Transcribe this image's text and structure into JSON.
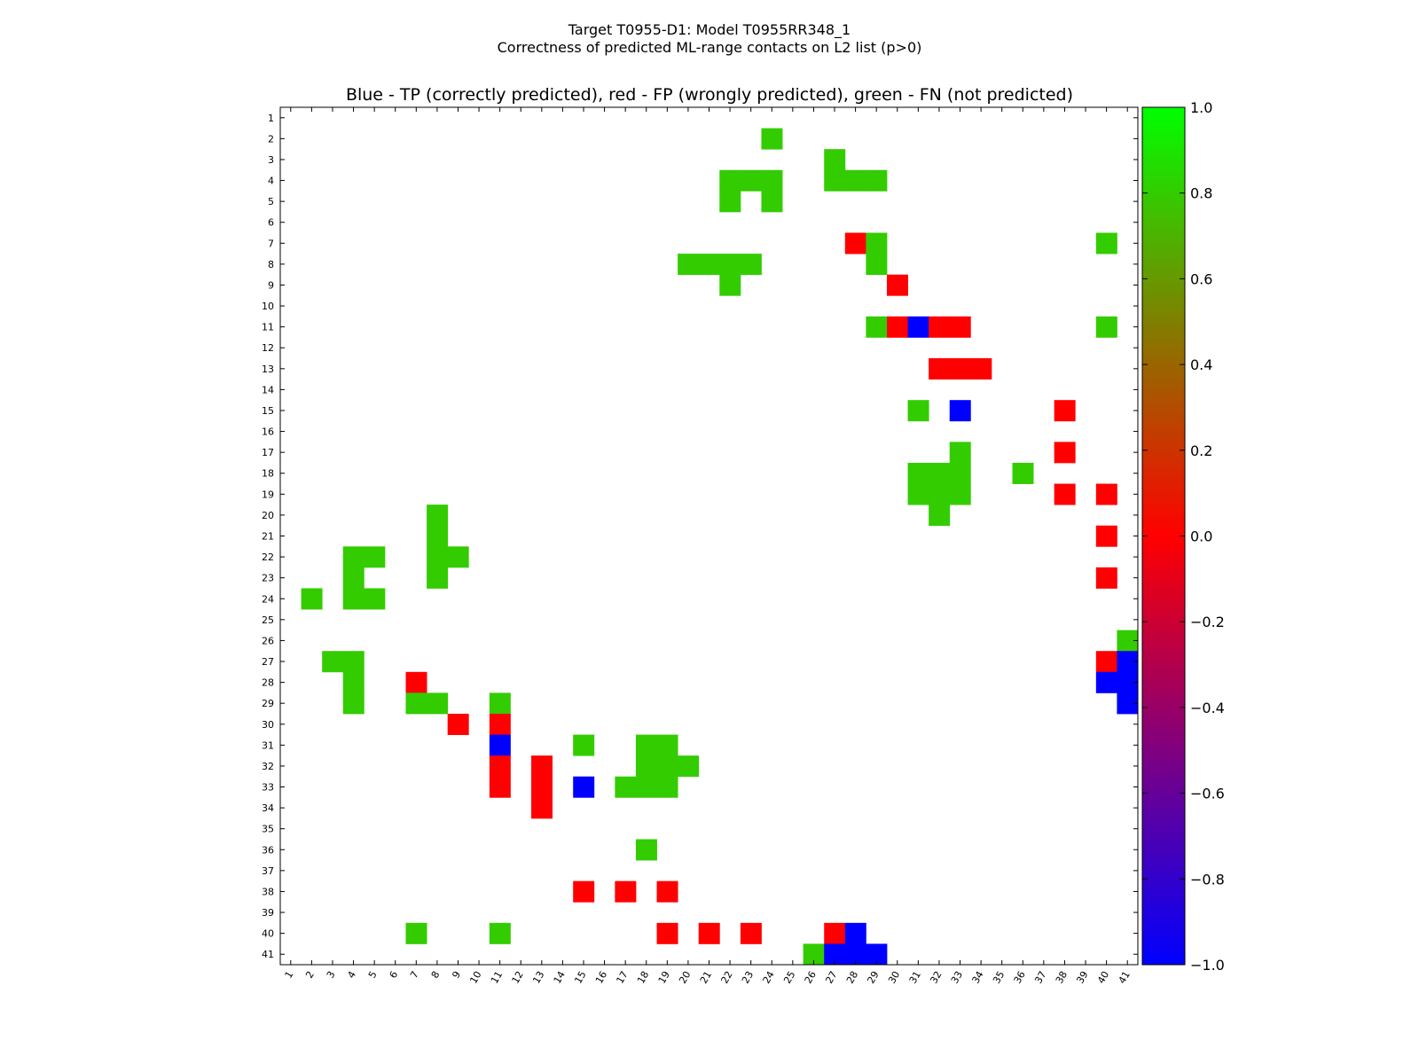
{
  "chart_data": {
    "type": "heatmap",
    "suptitle_line1": "Target T0955-D1: Model T0955RR348_1",
    "suptitle_line2": "Correctness of predicted ML-range contacts on L2 list (p>0)",
    "title": "Blue - TP (correctly predicted), red - FP (wrongly predicted), green - FN (not predicted)",
    "n": 41,
    "x_ticks": [
      "1",
      "2",
      "3",
      "4",
      "5",
      "6",
      "7",
      "8",
      "9",
      "10",
      "11",
      "12",
      "13",
      "14",
      "15",
      "16",
      "17",
      "18",
      "19",
      "20",
      "21",
      "22",
      "23",
      "24",
      "25",
      "26",
      "27",
      "28",
      "29",
      "30",
      "31",
      "32",
      "33",
      "34",
      "35",
      "36",
      "37",
      "38",
      "39",
      "40",
      "41"
    ],
    "y_ticks": [
      "1",
      "2",
      "3",
      "4",
      "5",
      "6",
      "7",
      "8",
      "9",
      "10",
      "11",
      "12",
      "13",
      "14",
      "15",
      "16",
      "17",
      "18",
      "19",
      "20",
      "21",
      "22",
      "23",
      "24",
      "25",
      "26",
      "27",
      "28",
      "29",
      "30",
      "31",
      "32",
      "33",
      "34",
      "35",
      "36",
      "37",
      "38",
      "39",
      "40",
      "41"
    ],
    "colorbar": {
      "vmin": -1.0,
      "vmax": 1.0,
      "ticks": [
        "−1.0",
        "−0.8",
        "−0.6",
        "−0.4",
        "−0.2",
        "0.0",
        "0.2",
        "0.4",
        "0.6",
        "0.8",
        "1.0"
      ]
    },
    "colors": {
      "TP": "#0000ff",
      "FP": "#ff0000",
      "FN": "#33cc00"
    },
    "categories": [
      "TP",
      "FP",
      "FN"
    ],
    "cells": [
      {
        "row": 2,
        "col": 24,
        "type": "FN"
      },
      {
        "row": 3,
        "col": 27,
        "type": "FN"
      },
      {
        "row": 4,
        "col": 22,
        "type": "FN"
      },
      {
        "row": 4,
        "col": 23,
        "type": "FN"
      },
      {
        "row": 4,
        "col": 24,
        "type": "FN"
      },
      {
        "row": 4,
        "col": 27,
        "type": "FN"
      },
      {
        "row": 4,
        "col": 28,
        "type": "FN"
      },
      {
        "row": 4,
        "col": 29,
        "type": "FN"
      },
      {
        "row": 5,
        "col": 22,
        "type": "FN"
      },
      {
        "row": 5,
        "col": 24,
        "type": "FN"
      },
      {
        "row": 7,
        "col": 28,
        "type": "FP"
      },
      {
        "row": 7,
        "col": 29,
        "type": "FN"
      },
      {
        "row": 7,
        "col": 40,
        "type": "FN"
      },
      {
        "row": 8,
        "col": 20,
        "type": "FN"
      },
      {
        "row": 8,
        "col": 21,
        "type": "FN"
      },
      {
        "row": 8,
        "col": 22,
        "type": "FN"
      },
      {
        "row": 8,
        "col": 23,
        "type": "FN"
      },
      {
        "row": 8,
        "col": 29,
        "type": "FN"
      },
      {
        "row": 9,
        "col": 22,
        "type": "FN"
      },
      {
        "row": 9,
        "col": 30,
        "type": "FP"
      },
      {
        "row": 11,
        "col": 29,
        "type": "FN"
      },
      {
        "row": 11,
        "col": 30,
        "type": "FP"
      },
      {
        "row": 11,
        "col": 31,
        "type": "TP"
      },
      {
        "row": 11,
        "col": 32,
        "type": "FP"
      },
      {
        "row": 11,
        "col": 33,
        "type": "FP"
      },
      {
        "row": 11,
        "col": 40,
        "type": "FN"
      },
      {
        "row": 13,
        "col": 32,
        "type": "FP"
      },
      {
        "row": 13,
        "col": 33,
        "type": "FP"
      },
      {
        "row": 13,
        "col": 34,
        "type": "FP"
      },
      {
        "row": 15,
        "col": 31,
        "type": "FN"
      },
      {
        "row": 15,
        "col": 33,
        "type": "TP"
      },
      {
        "row": 15,
        "col": 38,
        "type": "FP"
      },
      {
        "row": 17,
        "col": 33,
        "type": "FN"
      },
      {
        "row": 17,
        "col": 38,
        "type": "FP"
      },
      {
        "row": 18,
        "col": 31,
        "type": "FN"
      },
      {
        "row": 18,
        "col": 32,
        "type": "FN"
      },
      {
        "row": 18,
        "col": 33,
        "type": "FN"
      },
      {
        "row": 18,
        "col": 36,
        "type": "FN"
      },
      {
        "row": 19,
        "col": 31,
        "type": "FN"
      },
      {
        "row": 19,
        "col": 32,
        "type": "FN"
      },
      {
        "row": 19,
        "col": 33,
        "type": "FN"
      },
      {
        "row": 19,
        "col": 38,
        "type": "FP"
      },
      {
        "row": 19,
        "col": 40,
        "type": "FP"
      },
      {
        "row": 20,
        "col": 8,
        "type": "FN"
      },
      {
        "row": 20,
        "col": 32,
        "type": "FN"
      },
      {
        "row": 21,
        "col": 8,
        "type": "FN"
      },
      {
        "row": 21,
        "col": 40,
        "type": "FP"
      },
      {
        "row": 22,
        "col": 4,
        "type": "FN"
      },
      {
        "row": 22,
        "col": 5,
        "type": "FN"
      },
      {
        "row": 22,
        "col": 8,
        "type": "FN"
      },
      {
        "row": 22,
        "col": 9,
        "type": "FN"
      },
      {
        "row": 23,
        "col": 4,
        "type": "FN"
      },
      {
        "row": 23,
        "col": 8,
        "type": "FN"
      },
      {
        "row": 23,
        "col": 40,
        "type": "FP"
      },
      {
        "row": 24,
        "col": 2,
        "type": "FN"
      },
      {
        "row": 24,
        "col": 4,
        "type": "FN"
      },
      {
        "row": 24,
        "col": 5,
        "type": "FN"
      },
      {
        "row": 26,
        "col": 41,
        "type": "FN"
      },
      {
        "row": 27,
        "col": 3,
        "type": "FN"
      },
      {
        "row": 27,
        "col": 4,
        "type": "FN"
      },
      {
        "row": 27,
        "col": 40,
        "type": "FP"
      },
      {
        "row": 27,
        "col": 41,
        "type": "TP"
      },
      {
        "row": 28,
        "col": 4,
        "type": "FN"
      },
      {
        "row": 28,
        "col": 7,
        "type": "FP"
      },
      {
        "row": 28,
        "col": 40,
        "type": "TP"
      },
      {
        "row": 28,
        "col": 41,
        "type": "TP"
      },
      {
        "row": 29,
        "col": 4,
        "type": "FN"
      },
      {
        "row": 29,
        "col": 7,
        "type": "FN"
      },
      {
        "row": 29,
        "col": 8,
        "type": "FN"
      },
      {
        "row": 29,
        "col": 11,
        "type": "FN"
      },
      {
        "row": 29,
        "col": 41,
        "type": "TP"
      },
      {
        "row": 30,
        "col": 9,
        "type": "FP"
      },
      {
        "row": 30,
        "col": 11,
        "type": "FP"
      },
      {
        "row": 31,
        "col": 11,
        "type": "TP"
      },
      {
        "row": 31,
        "col": 15,
        "type": "FN"
      },
      {
        "row": 31,
        "col": 18,
        "type": "FN"
      },
      {
        "row": 31,
        "col": 19,
        "type": "FN"
      },
      {
        "row": 32,
        "col": 11,
        "type": "FP"
      },
      {
        "row": 32,
        "col": 13,
        "type": "FP"
      },
      {
        "row": 32,
        "col": 18,
        "type": "FN"
      },
      {
        "row": 32,
        "col": 19,
        "type": "FN"
      },
      {
        "row": 32,
        "col": 20,
        "type": "FN"
      },
      {
        "row": 33,
        "col": 11,
        "type": "FP"
      },
      {
        "row": 33,
        "col": 13,
        "type": "FP"
      },
      {
        "row": 33,
        "col": 15,
        "type": "TP"
      },
      {
        "row": 33,
        "col": 17,
        "type": "FN"
      },
      {
        "row": 33,
        "col": 18,
        "type": "FN"
      },
      {
        "row": 33,
        "col": 19,
        "type": "FN"
      },
      {
        "row": 34,
        "col": 13,
        "type": "FP"
      },
      {
        "row": 36,
        "col": 18,
        "type": "FN"
      },
      {
        "row": 38,
        "col": 15,
        "type": "FP"
      },
      {
        "row": 38,
        "col": 17,
        "type": "FP"
      },
      {
        "row": 38,
        "col": 19,
        "type": "FP"
      },
      {
        "row": 40,
        "col": 7,
        "type": "FN"
      },
      {
        "row": 40,
        "col": 11,
        "type": "FN"
      },
      {
        "row": 40,
        "col": 19,
        "type": "FP"
      },
      {
        "row": 40,
        "col": 21,
        "type": "FP"
      },
      {
        "row": 40,
        "col": 23,
        "type": "FP"
      },
      {
        "row": 40,
        "col": 27,
        "type": "FP"
      },
      {
        "row": 40,
        "col": 28,
        "type": "TP"
      },
      {
        "row": 41,
        "col": 26,
        "type": "FN"
      },
      {
        "row": 41,
        "col": 27,
        "type": "TP"
      },
      {
        "row": 41,
        "col": 28,
        "type": "TP"
      },
      {
        "row": 41,
        "col": 29,
        "type": "TP"
      }
    ]
  }
}
